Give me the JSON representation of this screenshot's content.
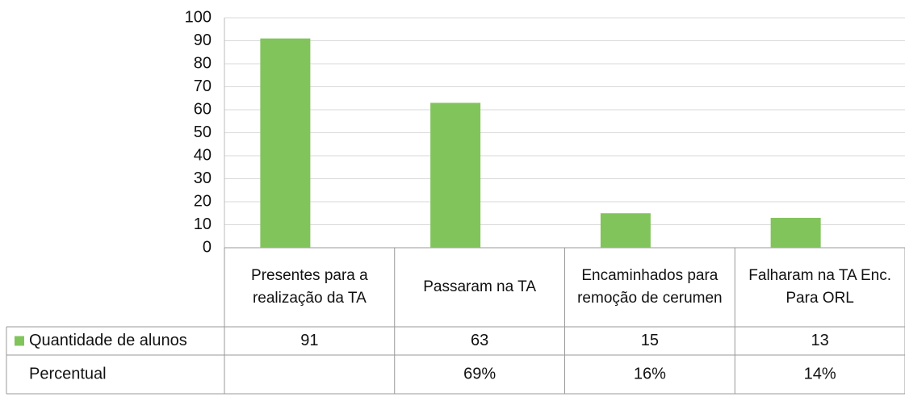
{
  "chart_data": {
    "type": "bar",
    "categories": [
      "Presentes para a realização da TA",
      "Passaram na TA",
      "Encaminhados para remoção de cerumen",
      "Falharam na TA Enc. Para ORL"
    ],
    "series": [
      {
        "name": "Quantidade de alunos",
        "color": "#82c45c",
        "values": [
          91,
          63,
          15,
          13
        ]
      }
    ],
    "table_rows": [
      {
        "name": "Percentual",
        "values": [
          null,
          69,
          16,
          14
        ],
        "value_labels": [
          null,
          "69%",
          "16%",
          "14%"
        ]
      }
    ],
    "ylim": [
      0,
      100
    ],
    "yticks": [
      0,
      10,
      20,
      30,
      40,
      50,
      60,
      70,
      80,
      90,
      100
    ],
    "grid": true
  }
}
